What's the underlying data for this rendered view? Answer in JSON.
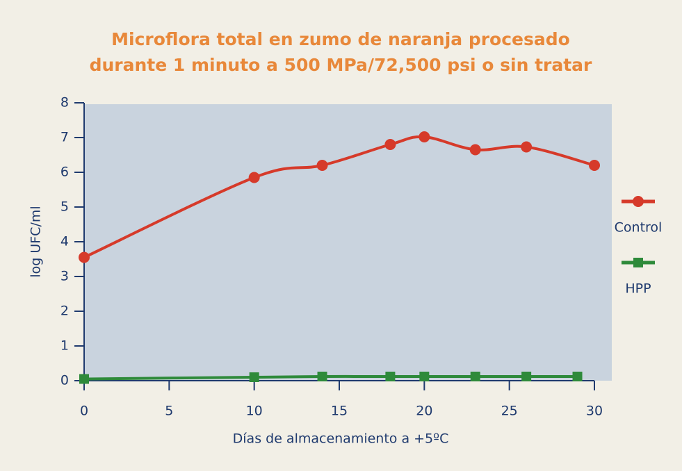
{
  "chart_data": {
    "type": "line",
    "title": [
      "Microflora total en zumo de naranja procesado",
      "durante 1 minuto a 500 MPa/72,500 psi o sin tratar"
    ],
    "xlabel": "Días de almacenamiento a +5ºC",
    "ylabel": "log UFC/ml",
    "xlim": [
      0,
      30
    ],
    "xticks": [
      0,
      5,
      10,
      15,
      20,
      25,
      30
    ],
    "ylim": [
      0,
      8
    ],
    "yticks": [
      0,
      1,
      2,
      3,
      4,
      5,
      6,
      7,
      8
    ],
    "legend": "right",
    "series": [
      {
        "name": "Control",
        "color": "#d63a2a",
        "marker": "circle",
        "x": [
          0,
          10,
          14,
          18,
          20,
          23,
          26,
          30
        ],
        "values": [
          3.55,
          5.85,
          6.2,
          6.8,
          7.02,
          6.65,
          6.73,
          6.2
        ]
      },
      {
        "name": "HPP",
        "color": "#2e8a3a",
        "marker": "square",
        "x": [
          0,
          10,
          14,
          18,
          20,
          23,
          26,
          29
        ],
        "values": [
          0.05,
          0.1,
          0.12,
          0.12,
          0.12,
          0.12,
          0.12,
          0.12
        ]
      }
    ]
  }
}
